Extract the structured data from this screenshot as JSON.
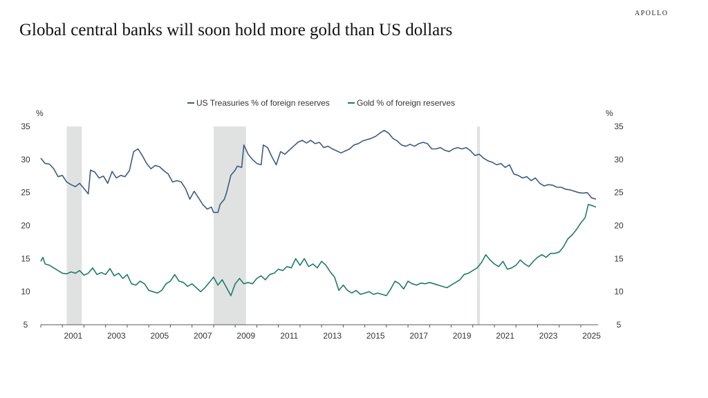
{
  "header": {
    "brand": "APOLLO",
    "title": "Global central banks will soon hold more gold than US dollars"
  },
  "chart_data": {
    "type": "line",
    "title": "Global central banks will soon hold more gold than US dollars",
    "y_unit_left": "%",
    "y_unit_right": "%",
    "xlim": [
      2000.0,
      2025.8
    ],
    "ylim": [
      5,
      35
    ],
    "y_ticks": [
      5,
      10,
      15,
      20,
      25,
      30,
      35
    ],
    "x_ticks": [
      2001,
      2003,
      2005,
      2007,
      2009,
      2011,
      2013,
      2015,
      2017,
      2019,
      2021,
      2023,
      2025
    ],
    "legend_position": "top-center",
    "grid": false,
    "recessions": [
      [
        2001.2,
        2001.9
      ],
      [
        2008.0,
        2009.5
      ],
      [
        2020.2,
        2020.33
      ]
    ],
    "series": [
      {
        "name": "US Treasuries % of foreign reserves",
        "color": "#3d5a80",
        "points": [
          [
            2000.0,
            30.2
          ],
          [
            2000.2,
            29.4
          ],
          [
            2000.4,
            29.3
          ],
          [
            2000.6,
            28.6
          ],
          [
            2000.8,
            27.4
          ],
          [
            2001.0,
            27.6
          ],
          [
            2001.2,
            26.6
          ],
          [
            2001.4,
            26.2
          ],
          [
            2001.6,
            25.9
          ],
          [
            2001.8,
            26.4
          ],
          [
            2002.0,
            25.6
          ],
          [
            2002.2,
            24.8
          ],
          [
            2002.3,
            28.4
          ],
          [
            2002.5,
            28.1
          ],
          [
            2002.7,
            27.2
          ],
          [
            2002.9,
            27.5
          ],
          [
            2003.1,
            26.4
          ],
          [
            2003.3,
            28.2
          ],
          [
            2003.5,
            27.2
          ],
          [
            2003.7,
            27.6
          ],
          [
            2003.9,
            27.4
          ],
          [
            2004.1,
            28.3
          ],
          [
            2004.3,
            31.2
          ],
          [
            2004.5,
            31.6
          ],
          [
            2004.7,
            30.6
          ],
          [
            2004.9,
            29.4
          ],
          [
            2005.1,
            28.6
          ],
          [
            2005.3,
            29.1
          ],
          [
            2005.5,
            28.9
          ],
          [
            2005.7,
            28.3
          ],
          [
            2005.9,
            27.8
          ],
          [
            2006.1,
            26.6
          ],
          [
            2006.3,
            26.8
          ],
          [
            2006.5,
            26.6
          ],
          [
            2006.7,
            25.6
          ],
          [
            2006.9,
            24.0
          ],
          [
            2007.1,
            25.2
          ],
          [
            2007.3,
            24.2
          ],
          [
            2007.5,
            23.2
          ],
          [
            2007.7,
            22.5
          ],
          [
            2007.9,
            22.8
          ],
          [
            2008.0,
            22.0
          ],
          [
            2008.2,
            22.0
          ],
          [
            2008.3,
            23.2
          ],
          [
            2008.5,
            24.0
          ],
          [
            2008.6,
            25.0
          ],
          [
            2008.8,
            27.6
          ],
          [
            2009.0,
            28.4
          ],
          [
            2009.1,
            29.0
          ],
          [
            2009.3,
            28.8
          ],
          [
            2009.4,
            32.2
          ],
          [
            2009.6,
            30.8
          ],
          [
            2009.8,
            30.0
          ],
          [
            2010.0,
            29.4
          ],
          [
            2010.2,
            29.2
          ],
          [
            2010.3,
            32.2
          ],
          [
            2010.5,
            31.8
          ],
          [
            2010.7,
            30.4
          ],
          [
            2010.9,
            29.2
          ],
          [
            2011.1,
            31.2
          ],
          [
            2011.3,
            30.8
          ],
          [
            2011.5,
            31.4
          ],
          [
            2011.7,
            32.0
          ],
          [
            2011.9,
            32.6
          ],
          [
            2012.1,
            32.9
          ],
          [
            2012.3,
            32.5
          ],
          [
            2012.5,
            32.9
          ],
          [
            2012.7,
            32.4
          ],
          [
            2012.9,
            32.6
          ],
          [
            2013.1,
            31.8
          ],
          [
            2013.3,
            32.0
          ],
          [
            2013.5,
            31.6
          ],
          [
            2013.7,
            31.3
          ],
          [
            2013.9,
            31.0
          ],
          [
            2014.1,
            31.3
          ],
          [
            2014.3,
            31.6
          ],
          [
            2014.5,
            32.2
          ],
          [
            2014.7,
            32.4
          ],
          [
            2014.9,
            32.8
          ],
          [
            2015.1,
            33.0
          ],
          [
            2015.3,
            33.2
          ],
          [
            2015.5,
            33.5
          ],
          [
            2015.7,
            34.0
          ],
          [
            2015.9,
            34.4
          ],
          [
            2016.1,
            34.0
          ],
          [
            2016.3,
            33.2
          ],
          [
            2016.5,
            32.8
          ],
          [
            2016.7,
            32.2
          ],
          [
            2016.9,
            32.0
          ],
          [
            2017.1,
            32.3
          ],
          [
            2017.3,
            32.0
          ],
          [
            2017.5,
            32.4
          ],
          [
            2017.7,
            32.6
          ],
          [
            2017.9,
            32.4
          ],
          [
            2018.1,
            31.6
          ],
          [
            2018.3,
            31.6
          ],
          [
            2018.5,
            31.8
          ],
          [
            2018.7,
            31.4
          ],
          [
            2018.9,
            31.2
          ],
          [
            2019.1,
            31.6
          ],
          [
            2019.3,
            31.8
          ],
          [
            2019.5,
            31.6
          ],
          [
            2019.7,
            31.8
          ],
          [
            2019.9,
            31.3
          ],
          [
            2020.1,
            30.6
          ],
          [
            2020.3,
            30.8
          ],
          [
            2020.5,
            30.2
          ],
          [
            2020.7,
            29.8
          ],
          [
            2020.9,
            29.6
          ],
          [
            2021.1,
            29.2
          ],
          [
            2021.3,
            29.4
          ],
          [
            2021.5,
            28.8
          ],
          [
            2021.7,
            29.2
          ],
          [
            2021.9,
            27.8
          ],
          [
            2022.1,
            27.6
          ],
          [
            2022.3,
            27.2
          ],
          [
            2022.5,
            27.4
          ],
          [
            2022.7,
            26.8
          ],
          [
            2022.9,
            27.2
          ],
          [
            2023.1,
            26.4
          ],
          [
            2023.3,
            26.0
          ],
          [
            2023.5,
            26.2
          ],
          [
            2023.7,
            26.1
          ],
          [
            2023.9,
            25.8
          ],
          [
            2024.1,
            25.8
          ],
          [
            2024.3,
            25.5
          ],
          [
            2024.5,
            25.4
          ],
          [
            2024.7,
            25.2
          ],
          [
            2024.9,
            25.0
          ],
          [
            2025.1,
            24.9
          ],
          [
            2025.3,
            25.0
          ],
          [
            2025.5,
            24.2
          ],
          [
            2025.7,
            24.0
          ]
        ]
      },
      {
        "name": "Gold % of foreign reserves",
        "color": "#1d7a66",
        "points": [
          [
            2000.0,
            14.6
          ],
          [
            2000.1,
            15.2
          ],
          [
            2000.2,
            14.2
          ],
          [
            2000.4,
            14.0
          ],
          [
            2000.6,
            13.6
          ],
          [
            2000.8,
            13.2
          ],
          [
            2001.0,
            12.8
          ],
          [
            2001.2,
            12.7
          ],
          [
            2001.4,
            13.0
          ],
          [
            2001.6,
            12.8
          ],
          [
            2001.8,
            13.2
          ],
          [
            2002.0,
            12.5
          ],
          [
            2002.2,
            12.8
          ],
          [
            2002.4,
            13.6
          ],
          [
            2002.6,
            12.6
          ],
          [
            2002.8,
            12.9
          ],
          [
            2003.0,
            12.6
          ],
          [
            2003.2,
            13.5
          ],
          [
            2003.4,
            12.4
          ],
          [
            2003.6,
            12.8
          ],
          [
            2003.8,
            12.0
          ],
          [
            2004.0,
            12.6
          ],
          [
            2004.2,
            11.2
          ],
          [
            2004.4,
            11.0
          ],
          [
            2004.6,
            11.6
          ],
          [
            2004.8,
            11.2
          ],
          [
            2005.0,
            10.2
          ],
          [
            2005.2,
            10.0
          ],
          [
            2005.4,
            9.8
          ],
          [
            2005.6,
            10.2
          ],
          [
            2005.8,
            11.2
          ],
          [
            2006.0,
            11.6
          ],
          [
            2006.2,
            12.6
          ],
          [
            2006.4,
            11.6
          ],
          [
            2006.6,
            11.4
          ],
          [
            2006.8,
            10.8
          ],
          [
            2007.0,
            11.2
          ],
          [
            2007.2,
            10.6
          ],
          [
            2007.4,
            10.0
          ],
          [
            2007.6,
            10.6
          ],
          [
            2007.8,
            11.4
          ],
          [
            2008.0,
            12.2
          ],
          [
            2008.2,
            11.0
          ],
          [
            2008.4,
            11.8
          ],
          [
            2008.6,
            10.6
          ],
          [
            2008.8,
            9.4
          ],
          [
            2009.0,
            11.2
          ],
          [
            2009.2,
            12.0
          ],
          [
            2009.4,
            11.2
          ],
          [
            2009.6,
            11.4
          ],
          [
            2009.8,
            11.2
          ],
          [
            2010.0,
            12.0
          ],
          [
            2010.2,
            12.4
          ],
          [
            2010.4,
            11.8
          ],
          [
            2010.6,
            12.6
          ],
          [
            2010.8,
            12.8
          ],
          [
            2011.0,
            13.4
          ],
          [
            2011.2,
            13.2
          ],
          [
            2011.4,
            13.8
          ],
          [
            2011.6,
            13.6
          ],
          [
            2011.8,
            15.0
          ],
          [
            2012.0,
            14.0
          ],
          [
            2012.2,
            15.0
          ],
          [
            2012.4,
            13.8
          ],
          [
            2012.6,
            14.2
          ],
          [
            2012.8,
            13.6
          ],
          [
            2013.0,
            14.6
          ],
          [
            2013.2,
            14.0
          ],
          [
            2013.4,
            13.0
          ],
          [
            2013.6,
            12.2
          ],
          [
            2013.8,
            10.2
          ],
          [
            2014.0,
            11.0
          ],
          [
            2014.2,
            10.2
          ],
          [
            2014.4,
            9.8
          ],
          [
            2014.6,
            10.2
          ],
          [
            2014.8,
            9.6
          ],
          [
            2015.0,
            9.8
          ],
          [
            2015.2,
            10.0
          ],
          [
            2015.4,
            9.6
          ],
          [
            2015.6,
            9.8
          ],
          [
            2015.8,
            9.6
          ],
          [
            2016.0,
            9.4
          ],
          [
            2016.2,
            10.4
          ],
          [
            2016.4,
            11.6
          ],
          [
            2016.6,
            11.2
          ],
          [
            2016.8,
            10.4
          ],
          [
            2017.0,
            11.6
          ],
          [
            2017.2,
            11.2
          ],
          [
            2017.4,
            11.0
          ],
          [
            2017.6,
            11.3
          ],
          [
            2017.8,
            11.2
          ],
          [
            2018.0,
            11.4
          ],
          [
            2018.2,
            11.2
          ],
          [
            2018.4,
            11.0
          ],
          [
            2018.6,
            10.8
          ],
          [
            2018.8,
            10.6
          ],
          [
            2019.0,
            11.0
          ],
          [
            2019.2,
            11.4
          ],
          [
            2019.4,
            11.8
          ],
          [
            2019.6,
            12.6
          ],
          [
            2019.8,
            12.8
          ],
          [
            2020.0,
            13.2
          ],
          [
            2020.2,
            13.6
          ],
          [
            2020.4,
            14.4
          ],
          [
            2020.6,
            15.6
          ],
          [
            2020.8,
            14.8
          ],
          [
            2021.0,
            14.2
          ],
          [
            2021.2,
            13.8
          ],
          [
            2021.4,
            14.6
          ],
          [
            2021.6,
            13.4
          ],
          [
            2021.8,
            13.6
          ],
          [
            2022.0,
            14.0
          ],
          [
            2022.2,
            14.8
          ],
          [
            2022.4,
            14.2
          ],
          [
            2022.6,
            13.8
          ],
          [
            2022.8,
            14.6
          ],
          [
            2023.0,
            15.2
          ],
          [
            2023.2,
            15.6
          ],
          [
            2023.4,
            15.2
          ],
          [
            2023.6,
            15.8
          ],
          [
            2023.8,
            15.8
          ],
          [
            2024.0,
            16.0
          ],
          [
            2024.2,
            16.8
          ],
          [
            2024.4,
            18.0
          ],
          [
            2024.6,
            18.6
          ],
          [
            2024.8,
            19.4
          ],
          [
            2025.0,
            20.4
          ],
          [
            2025.2,
            21.2
          ],
          [
            2025.35,
            23.2
          ],
          [
            2025.55,
            23.0
          ],
          [
            2025.7,
            22.8
          ]
        ]
      }
    ]
  }
}
